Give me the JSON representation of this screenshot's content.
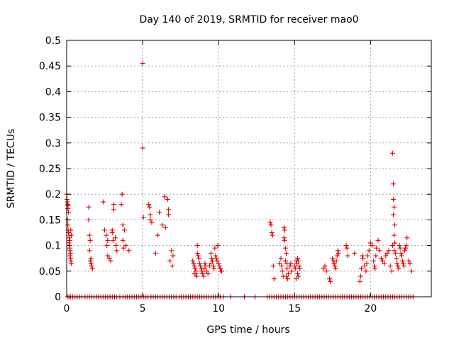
{
  "chart_data": {
    "type": "scatter",
    "title": "Day 140 of 2019, SRMTID for receiver mao0",
    "xlabel": "GPS time / hours",
    "ylabel": "SRMTID / TECUs",
    "xlim": [
      0,
      24
    ],
    "ylim": [
      0,
      0.5
    ],
    "x_ticks": [
      0,
      5,
      10,
      15,
      20
    ],
    "x_tick_labels": [
      "0",
      "5",
      "10",
      "15",
      "20"
    ],
    "y_ticks": [
      0,
      0.05,
      0.1,
      0.15,
      0.2,
      0.25,
      0.3,
      0.35,
      0.4,
      0.45,
      0.5
    ],
    "y_tick_labels": [
      "0",
      "0.05",
      "0.1",
      "0.15",
      "0.2",
      "0.25",
      "0.3",
      "0.35",
      "0.4",
      "0.45",
      "0.5"
    ],
    "grid": true,
    "marker": "+",
    "color": "#e00000",
    "series": [
      {
        "name": "SRMTID",
        "points": [
          [
            0.0,
            0.2
          ],
          [
            0.02,
            0.19
          ],
          [
            0.05,
            0.185
          ],
          [
            0.07,
            0.18
          ],
          [
            0.08,
            0.172
          ],
          [
            0.1,
            0.178
          ],
          [
            0.12,
            0.165
          ],
          [
            0.05,
            0.15
          ],
          [
            0.08,
            0.14
          ],
          [
            0.1,
            0.13
          ],
          [
            0.12,
            0.125
          ],
          [
            0.15,
            0.12
          ],
          [
            0.17,
            0.115
          ],
          [
            0.2,
            0.11
          ],
          [
            0.15,
            0.105
          ],
          [
            0.18,
            0.1
          ],
          [
            0.2,
            0.095
          ],
          [
            0.22,
            0.09
          ],
          [
            0.25,
            0.085
          ],
          [
            0.22,
            0.08
          ],
          [
            0.25,
            0.075
          ],
          [
            0.28,
            0.07
          ],
          [
            0.3,
            0.065
          ],
          [
            0.27,
            0.13
          ],
          [
            0.3,
            0.12
          ],
          [
            1.45,
            0.175
          ],
          [
            1.45,
            0.15
          ],
          [
            1.5,
            0.12
          ],
          [
            1.55,
            0.11
          ],
          [
            1.5,
            0.09
          ],
          [
            1.6,
            0.075
          ],
          [
            1.55,
            0.07
          ],
          [
            1.6,
            0.065
          ],
          [
            1.65,
            0.06
          ],
          [
            1.7,
            0.055
          ],
          [
            2.4,
            0.185
          ],
          [
            2.5,
            0.13
          ],
          [
            2.6,
            0.12
          ],
          [
            2.7,
            0.11
          ],
          [
            2.65,
            0.1
          ],
          [
            2.7,
            0.08
          ],
          [
            2.8,
            0.075
          ],
          [
            2.9,
            0.07
          ],
          [
            3.0,
            0.13
          ],
          [
            3.0,
            0.125
          ],
          [
            3.05,
            0.11
          ],
          [
            3.1,
            0.18
          ],
          [
            3.1,
            0.17
          ],
          [
            3.2,
            0.115
          ],
          [
            3.25,
            0.1
          ],
          [
            3.3,
            0.09
          ],
          [
            3.65,
            0.2
          ],
          [
            3.6,
            0.18
          ],
          [
            3.7,
            0.14
          ],
          [
            3.8,
            0.13
          ],
          [
            3.7,
            0.11
          ],
          [
            3.9,
            0.1
          ],
          [
            3.75,
            0.095
          ],
          [
            4.1,
            0.09
          ],
          [
            5.0,
            0.455
          ],
          [
            5.0,
            0.29
          ],
          [
            5.05,
            0.155
          ],
          [
            5.4,
            0.18
          ],
          [
            5.45,
            0.175
          ],
          [
            5.5,
            0.15
          ],
          [
            5.6,
            0.145
          ],
          [
            5.5,
            0.16
          ],
          [
            5.85,
            0.085
          ],
          [
            6.0,
            0.12
          ],
          [
            6.1,
            0.165
          ],
          [
            6.3,
            0.14
          ],
          [
            6.45,
            0.195
          ],
          [
            6.5,
            0.135
          ],
          [
            6.65,
            0.19
          ],
          [
            6.7,
            0.17
          ],
          [
            6.7,
            0.16
          ],
          [
            6.8,
            0.07
          ],
          [
            6.9,
            0.09
          ],
          [
            7.0,
            0.08
          ],
          [
            6.95,
            0.06
          ],
          [
            8.3,
            0.07
          ],
          [
            8.35,
            0.065
          ],
          [
            8.4,
            0.06
          ],
          [
            8.45,
            0.055
          ],
          [
            8.5,
            0.05
          ],
          [
            8.4,
            0.045
          ],
          [
            8.5,
            0.045
          ],
          [
            8.55,
            0.04
          ],
          [
            8.6,
            0.1
          ],
          [
            8.6,
            0.085
          ],
          [
            8.65,
            0.08
          ],
          [
            8.7,
            0.075
          ],
          [
            8.75,
            0.065
          ],
          [
            8.8,
            0.06
          ],
          [
            8.85,
            0.055
          ],
          [
            8.9,
            0.05
          ],
          [
            8.95,
            0.045
          ],
          [
            9.0,
            0.04
          ],
          [
            9.05,
            0.055
          ],
          [
            9.1,
            0.065
          ],
          [
            9.15,
            0.06
          ],
          [
            9.2,
            0.05
          ],
          [
            9.3,
            0.045
          ],
          [
            9.4,
            0.06
          ],
          [
            9.5,
            0.065
          ],
          [
            9.5,
            0.085
          ],
          [
            9.55,
            0.075
          ],
          [
            9.6,
            0.07
          ],
          [
            9.65,
            0.06
          ],
          [
            9.7,
            0.055
          ],
          [
            9.75,
            0.095
          ],
          [
            9.8,
            0.08
          ],
          [
            9.85,
            0.075
          ],
          [
            9.9,
            0.07
          ],
          [
            9.95,
            0.1
          ],
          [
            10.0,
            0.065
          ],
          [
            10.05,
            0.06
          ],
          [
            10.1,
            0.055
          ],
          [
            10.15,
            0.05
          ],
          [
            10.2,
            0.05
          ],
          [
            13.4,
            0.145
          ],
          [
            13.45,
            0.14
          ],
          [
            13.5,
            0.125
          ],
          [
            13.55,
            0.12
          ],
          [
            13.6,
            0.06
          ],
          [
            13.65,
            0.035
          ],
          [
            14.0,
            0.065
          ],
          [
            14.1,
            0.075
          ],
          [
            14.15,
            0.06
          ],
          [
            14.2,
            0.05
          ],
          [
            14.25,
            0.04
          ],
          [
            14.3,
            0.135
          ],
          [
            14.35,
            0.13
          ],
          [
            14.3,
            0.115
          ],
          [
            14.35,
            0.11
          ],
          [
            14.4,
            0.095
          ],
          [
            14.45,
            0.085
          ],
          [
            14.4,
            0.07
          ],
          [
            14.5,
            0.065
          ],
          [
            14.5,
            0.055
          ],
          [
            14.45,
            0.04
          ],
          [
            14.55,
            0.035
          ],
          [
            14.6,
            0.045
          ],
          [
            14.7,
            0.06
          ],
          [
            14.75,
            0.065
          ],
          [
            14.8,
            0.05
          ],
          [
            15.0,
            0.06
          ],
          [
            15.05,
            0.055
          ],
          [
            15.1,
            0.07
          ],
          [
            15.15,
            0.065
          ],
          [
            15.2,
            0.075
          ],
          [
            15.25,
            0.07
          ],
          [
            15.3,
            0.06
          ],
          [
            15.35,
            0.055
          ],
          [
            15.2,
            0.045
          ],
          [
            15.25,
            0.04
          ],
          [
            15.1,
            0.035
          ],
          [
            16.9,
            0.055
          ],
          [
            17.0,
            0.06
          ],
          [
            17.1,
            0.05
          ],
          [
            17.3,
            0.035
          ],
          [
            17.35,
            0.03
          ],
          [
            17.5,
            0.075
          ],
          [
            17.55,
            0.07
          ],
          [
            17.6,
            0.065
          ],
          [
            17.65,
            0.06
          ],
          [
            17.7,
            0.055
          ],
          [
            17.75,
            0.07
          ],
          [
            17.8,
            0.08
          ],
          [
            17.85,
            0.09
          ],
          [
            17.9,
            0.085
          ],
          [
            18.4,
            0.1
          ],
          [
            18.45,
            0.095
          ],
          [
            18.5,
            0.08
          ],
          [
            18.95,
            0.085
          ],
          [
            19.3,
            0.03
          ],
          [
            19.35,
            0.04
          ],
          [
            19.4,
            0.055
          ],
          [
            19.45,
            0.08
          ],
          [
            19.5,
            0.075
          ],
          [
            19.6,
            0.06
          ],
          [
            19.7,
            0.05
          ],
          [
            19.75,
            0.065
          ],
          [
            19.8,
            0.08
          ],
          [
            19.9,
            0.09
          ],
          [
            20.0,
            0.105
          ],
          [
            20.1,
            0.1
          ],
          [
            20.2,
            0.07
          ],
          [
            20.25,
            0.06
          ],
          [
            20.3,
            0.055
          ],
          [
            20.35,
            0.08
          ],
          [
            20.4,
            0.095
          ],
          [
            20.5,
            0.11
          ],
          [
            20.6,
            0.09
          ],
          [
            20.7,
            0.075
          ],
          [
            20.8,
            0.07
          ],
          [
            20.9,
            0.065
          ],
          [
            21.0,
            0.08
          ],
          [
            21.1,
            0.085
          ],
          [
            21.2,
            0.09
          ],
          [
            21.3,
            0.06
          ],
          [
            21.4,
            0.05
          ],
          [
            21.45,
            0.28
          ],
          [
            21.5,
            0.22
          ],
          [
            21.5,
            0.19
          ],
          [
            21.55,
            0.175
          ],
          [
            21.5,
            0.16
          ],
          [
            21.6,
            0.14
          ],
          [
            21.55,
            0.12
          ],
          [
            21.6,
            0.105
          ],
          [
            21.45,
            0.1
          ],
          [
            21.55,
            0.09
          ],
          [
            21.65,
            0.085
          ],
          [
            21.7,
            0.075
          ],
          [
            21.75,
            0.065
          ],
          [
            21.8,
            0.06
          ],
          [
            21.85,
            0.055
          ],
          [
            21.9,
            0.1
          ],
          [
            21.95,
            0.095
          ],
          [
            22.0,
            0.085
          ],
          [
            22.05,
            0.08
          ],
          [
            22.1,
            0.07
          ],
          [
            22.15,
            0.065
          ],
          [
            22.2,
            0.06
          ],
          [
            22.25,
            0.09
          ],
          [
            22.3,
            0.095
          ],
          [
            22.35,
            0.1
          ],
          [
            22.4,
            0.115
          ],
          [
            22.5,
            0.07
          ],
          [
            22.6,
            0.065
          ],
          [
            22.7,
            0.05
          ]
        ]
      }
    ],
    "zero_points_x": [
      0.05,
      0.15,
      0.25,
      0.4,
      0.55,
      0.7,
      0.85,
      1.0,
      1.2,
      1.35,
      1.5,
      1.65,
      1.8,
      1.95,
      2.1,
      2.25,
      2.4,
      2.55,
      2.7,
      2.85,
      3.0,
      3.15,
      3.3,
      3.5,
      3.7,
      3.85,
      4.0,
      4.15,
      4.3,
      4.45,
      4.6,
      4.75,
      4.9,
      5.05,
      5.2,
      5.35,
      5.55,
      5.7,
      5.85,
      6.0,
      6.15,
      6.3,
      6.45,
      6.6,
      6.75,
      6.9,
      7.05,
      7.2,
      7.4,
      7.55,
      7.7,
      7.85,
      8.0,
      8.15,
      8.3,
      8.45,
      8.6,
      8.75,
      8.9,
      9.05,
      9.2,
      9.35,
      9.5,
      9.65,
      9.8,
      9.95,
      10.1,
      10.3,
      10.8,
      11.7,
      12.4,
      13.2,
      13.35,
      13.5,
      13.65,
      13.8,
      13.95,
      14.1,
      14.25,
      14.4,
      14.55,
      14.7,
      14.85,
      15.0,
      15.15,
      15.3,
      15.45,
      15.6,
      15.75,
      15.9,
      16.05,
      16.2,
      16.35,
      16.5,
      16.65,
      16.8,
      16.95,
      17.1,
      17.25,
      17.4,
      17.55,
      17.7,
      17.85,
      18.0,
      18.15,
      18.3,
      18.45,
      18.6,
      18.75,
      18.9,
      19.05,
      19.2,
      19.35,
      19.5,
      19.65,
      19.8,
      19.95,
      20.1,
      20.25,
      20.4,
      20.55,
      20.7,
      20.85,
      21.0,
      21.15,
      21.3,
      21.45,
      21.6,
      21.75,
      21.9,
      22.05,
      22.2,
      22.35,
      22.5,
      22.65,
      22.8
    ]
  }
}
